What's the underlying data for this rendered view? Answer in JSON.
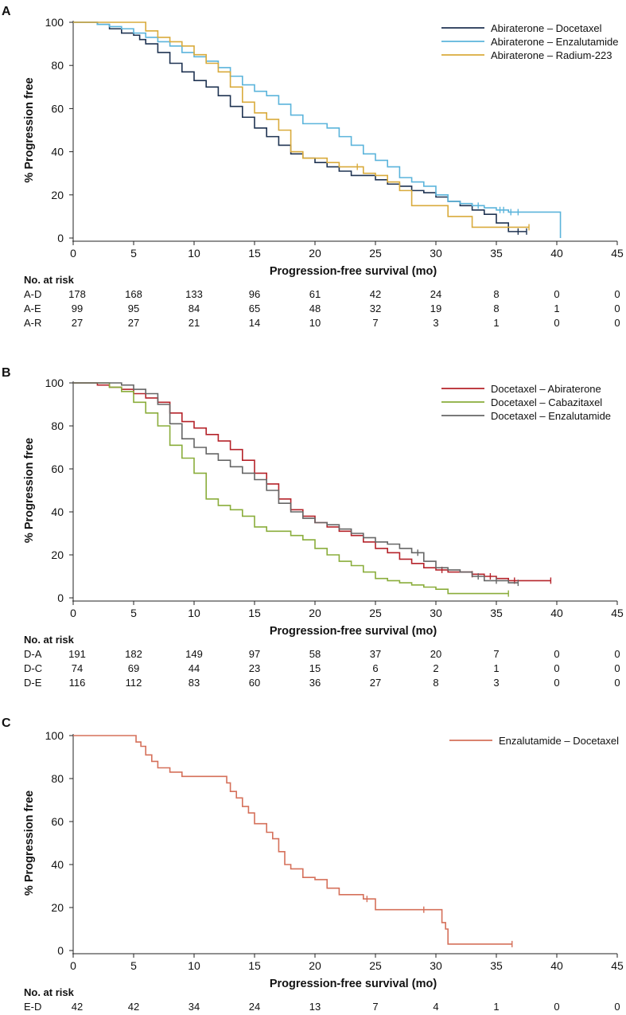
{
  "colors": {
    "ad": "#1f3352",
    "ae": "#5bb4db",
    "ar": "#d9ab3c",
    "da": "#b5232a",
    "dc": "#8aad3b",
    "de": "#666666",
    "ed": "#d5705a"
  },
  "chart_data": [
    {
      "id": "A",
      "panel_label": "A",
      "type": "line",
      "subtype": "kaplan-meier",
      "xlabel": "Progression-free survival (mo)",
      "ylabel": "% Progression free",
      "xlim": [
        0,
        45
      ],
      "ylim": [
        0,
        100
      ],
      "xticks": [
        0,
        5,
        10,
        15,
        20,
        25,
        30,
        35,
        40,
        45
      ],
      "yticks": [
        0,
        20,
        40,
        60,
        80,
        100
      ],
      "legend_position": "top-right",
      "risk_header": "No. at risk",
      "series": [
        {
          "name": "Abiraterone – Docetaxel",
          "abbr": "A-D",
          "color_key": "ad",
          "x": [
            0,
            2,
            3,
            4,
            5,
            5.5,
            6,
            7,
            8,
            9,
            10,
            11,
            12,
            13,
            14,
            15,
            16,
            17,
            18,
            19,
            20,
            21,
            22,
            23,
            24,
            25,
            26,
            27,
            28,
            29,
            30,
            31,
            32,
            33,
            34,
            35,
            36,
            37.5
          ],
          "y": [
            100,
            99,
            97,
            95,
            94,
            92,
            90,
            86,
            81,
            77,
            73,
            70,
            66,
            61,
            56,
            51,
            47,
            43,
            39,
            37,
            35,
            33,
            31,
            29,
            29,
            27,
            25,
            24,
            22,
            21,
            19,
            17,
            15,
            13,
            11,
            7,
            3,
            3
          ],
          "censor_x": [
            36.8,
            37.5
          ],
          "at_risk": [
            178,
            168,
            133,
            96,
            61,
            42,
            24,
            8,
            0,
            0
          ]
        },
        {
          "name": "Abiraterone – Enzalutamide",
          "abbr": "A-E",
          "color_key": "ae",
          "x": [
            0,
            2,
            3,
            4,
            5,
            6,
            7,
            8,
            9,
            10,
            11,
            12,
            13,
            14,
            15,
            16,
            17,
            18,
            19,
            20,
            21,
            22,
            23,
            24,
            25,
            26,
            27,
            28,
            29,
            30,
            31,
            32,
            33,
            34,
            35,
            36,
            37,
            38,
            40.3,
            40.3
          ],
          "y": [
            100,
            99,
            98,
            97,
            95,
            93,
            91,
            89,
            86,
            84,
            82,
            79,
            75,
            71,
            68,
            66,
            62,
            57,
            53,
            53,
            51,
            47,
            43,
            39,
            36,
            33,
            28,
            26,
            24,
            20,
            17,
            16,
            15,
            14,
            13,
            12,
            12,
            12,
            12,
            0
          ],
          "censor_x": [
            33.5,
            35.3,
            35.6,
            36.2,
            36.8
          ],
          "at_risk": [
            99,
            95,
            84,
            65,
            48,
            32,
            19,
            8,
            1,
            0
          ]
        },
        {
          "name": "Abiraterone – Radium-223",
          "abbr": "A-R",
          "color_key": "ar",
          "x": [
            0,
            5.5,
            6,
            7,
            8,
            9,
            10,
            11,
            12,
            13,
            14,
            15,
            16,
            17,
            18,
            19,
            20,
            21,
            22,
            23,
            24,
            25,
            26,
            27,
            28,
            29,
            30,
            31,
            32,
            33,
            34,
            35,
            36,
            37.7
          ],
          "y": [
            100,
            100,
            96,
            93,
            91,
            89,
            85,
            81,
            77,
            70,
            63,
            58,
            55,
            50,
            40,
            37,
            37,
            35,
            33,
            33,
            30,
            29,
            26,
            22,
            15,
            15,
            15,
            10,
            10,
            5,
            5,
            5,
            5,
            5
          ],
          "censor_x": [
            23.5,
            37.7
          ],
          "at_risk": [
            27,
            27,
            21,
            14,
            10,
            7,
            3,
            1,
            0,
            0
          ]
        }
      ]
    },
    {
      "id": "B",
      "panel_label": "B",
      "type": "line",
      "subtype": "kaplan-meier",
      "xlabel": "Progression-free survival (mo)",
      "ylabel": "% Progression free",
      "xlim": [
        0,
        45
      ],
      "ylim": [
        0,
        100
      ],
      "xticks": [
        0,
        5,
        10,
        15,
        20,
        25,
        30,
        35,
        40,
        45
      ],
      "yticks": [
        0,
        20,
        40,
        60,
        80,
        100
      ],
      "legend_position": "top-right",
      "risk_header": "No. at risk",
      "series": [
        {
          "name": "Docetaxel – Abiraterone",
          "abbr": "D-A",
          "color_key": "da",
          "x": [
            0,
            2,
            3,
            4,
            5,
            6,
            7,
            8,
            9,
            10,
            11,
            12,
            13,
            14,
            15,
            16,
            17,
            18,
            19,
            20,
            21,
            22,
            23,
            24,
            25,
            26,
            27,
            28,
            29,
            30,
            31,
            32,
            33,
            34,
            35,
            36,
            37,
            38,
            39.5
          ],
          "y": [
            100,
            99,
            98,
            97,
            95,
            93,
            91,
            86,
            82,
            79,
            76,
            73,
            69,
            64,
            58,
            53,
            46,
            41,
            38,
            35,
            33,
            31,
            29,
            26,
            23,
            21,
            18,
            16,
            14,
            13,
            12,
            12,
            11,
            10,
            9,
            8,
            8,
            8,
            8
          ],
          "censor_x": [
            30.5,
            33,
            34.5,
            36.5,
            39.5
          ],
          "at_risk": [
            191,
            182,
            149,
            97,
            58,
            37,
            20,
            7,
            0,
            0
          ]
        },
        {
          "name": "Docetaxel – Cabazitaxel",
          "abbr": "D-C",
          "color_key": "dc",
          "x": [
            0,
            3,
            4,
            5,
            6,
            7,
            8,
            9,
            10,
            11,
            12,
            13,
            14,
            15,
            16,
            17,
            18,
            19,
            20,
            21,
            22,
            23,
            24,
            25,
            26,
            27,
            28,
            29,
            30,
            31,
            32,
            33,
            34,
            35,
            36
          ],
          "y": [
            100,
            98,
            96,
            91,
            86,
            80,
            71,
            65,
            58,
            46,
            43,
            41,
            38,
            33,
            31,
            31,
            29,
            27,
            23,
            20,
            17,
            15,
            12,
            9,
            8,
            7,
            6,
            5,
            4,
            2,
            2,
            2,
            2,
            2,
            2
          ],
          "censor_x": [
            36
          ],
          "at_risk": [
            74,
            69,
            44,
            23,
            15,
            6,
            2,
            1,
            0,
            0
          ]
        },
        {
          "name": "Docetaxel – Enzalutamide",
          "abbr": "D-E",
          "color_key": "de",
          "x": [
            0,
            4,
            5,
            6,
            7,
            8,
            9,
            10,
            11,
            12,
            13,
            14,
            15,
            16,
            17,
            18,
            19,
            20,
            21,
            22,
            23,
            24,
            25,
            26,
            27,
            28,
            29,
            30,
            31,
            32,
            33,
            34,
            35,
            36,
            36.8
          ],
          "y": [
            100,
            99,
            97,
            95,
            90,
            81,
            74,
            70,
            67,
            64,
            61,
            58,
            55,
            50,
            44,
            40,
            37,
            35,
            34,
            32,
            30,
            28,
            26,
            25,
            23,
            21,
            17,
            14,
            13,
            12,
            10,
            8,
            8,
            7,
            7
          ],
          "censor_x": [
            28.5,
            33.5,
            35,
            36.8
          ],
          "at_risk": [
            116,
            112,
            83,
            60,
            36,
            27,
            8,
            3,
            0,
            0
          ]
        }
      ]
    },
    {
      "id": "C",
      "panel_label": "C",
      "type": "line",
      "subtype": "kaplan-meier",
      "xlabel": "Progression-free survival (mo)",
      "ylabel": "% Progression free",
      "xlim": [
        0,
        45
      ],
      "ylim": [
        0,
        100
      ],
      "xticks": [
        0,
        5,
        10,
        15,
        20,
        25,
        30,
        35,
        40,
        45
      ],
      "yticks": [
        0,
        20,
        40,
        60,
        80,
        100
      ],
      "legend_position": "top-right",
      "risk_header": "No. at risk",
      "series": [
        {
          "name": "Enzalutamide – Docetaxel",
          "abbr": "E-D",
          "color_key": "ed",
          "x": [
            0,
            5.2,
            5.6,
            6,
            6.5,
            7,
            8,
            9,
            12.3,
            12.7,
            13,
            13.5,
            14,
            14.5,
            15,
            16,
            16.5,
            17,
            17.5,
            18,
            19,
            20,
            21,
            22,
            24,
            25,
            26,
            30.5,
            30.8,
            31,
            36.3
          ],
          "y": [
            100,
            97,
            95,
            91,
            88,
            85,
            83,
            81,
            81,
            78,
            74,
            71,
            67,
            64,
            59,
            55,
            52,
            46,
            40,
            38,
            34,
            33,
            29,
            26,
            24,
            19,
            19,
            13,
            10,
            3,
            3
          ],
          "censor_x": [
            24.3,
            29,
            36.3
          ],
          "at_risk": [
            42,
            42,
            34,
            24,
            13,
            7,
            4,
            1,
            0,
            0
          ]
        }
      ]
    }
  ]
}
